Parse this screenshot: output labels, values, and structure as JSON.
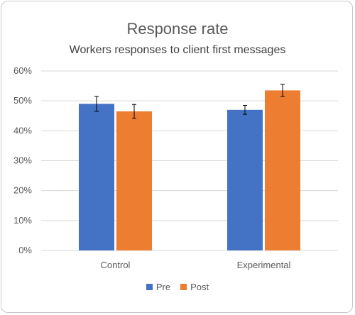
{
  "chart_data": {
    "type": "bar",
    "title": "Response rate",
    "subtitle": "Workers responses to client first messages",
    "categories": [
      "Control",
      "Experimental"
    ],
    "series": [
      {
        "name": "Pre",
        "color": "#4472c4",
        "values": [
          49,
          47
        ],
        "errors": [
          2.5,
          1.5
        ]
      },
      {
        "name": "Post",
        "color": "#ed7d31",
        "values": [
          46.5,
          53.5
        ],
        "errors": [
          2.3,
          2.0
        ]
      }
    ],
    "ylim": [
      0,
      60
    ],
    "yticks": [
      "0%",
      "10%",
      "20%",
      "30%",
      "40%",
      "50%",
      "60%"
    ],
    "ytick_values": [
      0,
      10,
      20,
      30,
      40,
      50,
      60
    ],
    "grid": true,
    "legend_position": "bottom"
  }
}
